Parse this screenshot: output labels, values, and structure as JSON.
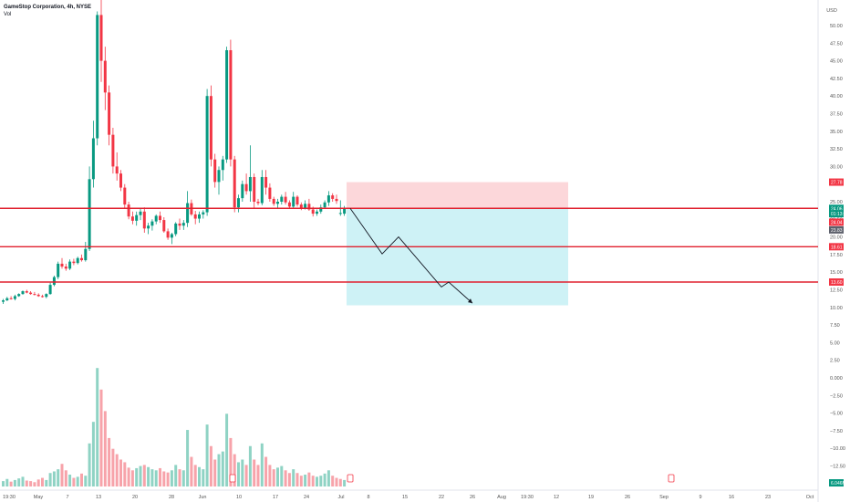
{
  "header": {
    "symbol_line": "GameStop Corporation, 4h, NYSE",
    "vol_label": "Vol",
    "currency": "USD"
  },
  "chart_data": {
    "type": "candlestick",
    "price_ticks": [
      "50.00",
      "47.50",
      "45.00",
      "42.50",
      "40.00",
      "37.50",
      "35.00",
      "32.50",
      "30.00",
      "27.50",
      "25.00",
      "22.50",
      "20.00",
      "17.50",
      "15.00",
      "12.50",
      "10.00",
      "7.50",
      "5.00",
      "2.50",
      "0.000",
      "−2.50",
      "−5.00",
      "−7.50",
      "−10.00",
      "−12.50"
    ],
    "price_tick_values": [
      50,
      47.5,
      45,
      42.5,
      40,
      37.5,
      35,
      32.5,
      30,
      27.5,
      25,
      22.5,
      20,
      17.5,
      15,
      12.5,
      10,
      7.5,
      5,
      2.5,
      0,
      -2.5,
      -5,
      -7.5,
      -10,
      -12.5
    ],
    "time_ticks": [
      "19:30",
      "May",
      "7",
      "13",
      "20",
      "28",
      "Jun",
      "10",
      "17",
      "24",
      "Jul",
      "8",
      "15",
      "22",
      "26",
      "Aug",
      "19:30",
      "12",
      "19",
      "26",
      "Sep",
      "9",
      "16",
      "23",
      "Oct"
    ],
    "horizontal_levels": [
      24.06,
      18.61,
      13.6
    ],
    "price_tags": [
      {
        "label": "27.78",
        "value": 27.78,
        "color": "#f23645"
      },
      {
        "label": "24.06",
        "value": 24.06,
        "color": "#089981"
      },
      {
        "label": "01:13:52",
        "value": 23.3,
        "color": "#089981"
      },
      {
        "label": "24.04",
        "value": 22.1,
        "color": "#f23645"
      },
      {
        "label": "23.83",
        "value": 21.0,
        "color": "#5d606b"
      },
      {
        "label": "18.61",
        "value": 18.61,
        "color": "#f23645"
      },
      {
        "label": "13.60",
        "value": 13.6,
        "color": "#f23645"
      },
      {
        "label": "6.046M",
        "value": -14.9,
        "color": "#089981"
      }
    ],
    "position": {
      "entry": 24.06,
      "stop": 27.78,
      "target": 10.3
    },
    "projection": [
      [
        24.06
      ],
      [
        17.6
      ],
      [
        20.0
      ],
      [
        12.9
      ],
      [
        13.6
      ],
      [
        10.6
      ]
    ],
    "candles": [
      [
        10.8,
        11.2,
        10.5,
        11.0
      ],
      [
        11.0,
        11.5,
        10.9,
        11.3
      ],
      [
        11.3,
        11.6,
        11.1,
        11.2
      ],
      [
        11.2,
        11.8,
        11.0,
        11.6
      ],
      [
        11.6,
        12.0,
        11.5,
        11.9
      ],
      [
        11.9,
        12.4,
        11.8,
        12.3
      ],
      [
        12.3,
        12.5,
        12.0,
        12.1
      ],
      [
        12.1,
        12.3,
        11.8,
        11.9
      ],
      [
        11.9,
        12.2,
        11.7,
        11.8
      ],
      [
        11.8,
        12.0,
        11.5,
        11.6
      ],
      [
        11.6,
        11.8,
        11.4,
        11.5
      ],
      [
        11.5,
        12.0,
        11.3,
        11.9
      ],
      [
        11.9,
        13.5,
        11.8,
        13.2
      ],
      [
        13.2,
        14.5,
        13.0,
        14.3
      ],
      [
        14.3,
        16.5,
        14.0,
        16.2
      ],
      [
        16.2,
        17.0,
        15.5,
        15.8
      ],
      [
        15.8,
        16.2,
        15.2,
        15.5
      ],
      [
        15.5,
        16.8,
        15.3,
        16.5
      ],
      [
        16.5,
        16.9,
        16.0,
        16.3
      ],
      [
        16.3,
        17.2,
        16.1,
        17.0
      ],
      [
        17.0,
        17.5,
        16.5,
        16.7
      ],
      [
        16.7,
        19.3,
        16.5,
        18.3
      ],
      [
        18.3,
        30.0,
        18.0,
        28.2
      ],
      [
        28.2,
        36.5,
        27.0,
        34.0
      ],
      [
        34.0,
        52.0,
        33.0,
        51.5
      ],
      [
        51.5,
        55.0,
        42.0,
        45.0
      ],
      [
        45.0,
        47.0,
        38.0,
        40.5
      ],
      [
        40.5,
        41.5,
        33.0,
        34.5
      ],
      [
        34.5,
        35.5,
        29.0,
        30.0
      ],
      [
        30.0,
        32.0,
        28.0,
        29.0
      ],
      [
        29.0,
        29.5,
        26.5,
        27.0
      ],
      [
        27.0,
        27.5,
        24.0,
        24.6
      ],
      [
        24.6,
        25.0,
        22.5,
        22.9
      ],
      [
        22.9,
        23.6,
        21.8,
        22.3
      ],
      [
        22.3,
        23.6,
        21.6,
        23.1
      ],
      [
        23.1,
        24.1,
        22.4,
        23.6
      ],
      [
        23.6,
        24.2,
        20.6,
        21.2
      ],
      [
        21.2,
        22.0,
        20.4,
        21.6
      ],
      [
        21.6,
        22.5,
        20.9,
        22.2
      ],
      [
        22.2,
        23.2,
        21.8,
        23.0
      ],
      [
        23.0,
        23.6,
        22.0,
        22.4
      ],
      [
        22.4,
        22.8,
        20.6,
        20.8
      ],
      [
        20.8,
        21.2,
        19.6,
        19.9
      ],
      [
        19.9,
        20.6,
        19.0,
        20.4
      ],
      [
        20.4,
        22.1,
        20.1,
        21.9
      ],
      [
        21.9,
        22.6,
        21.0,
        21.6
      ],
      [
        21.6,
        22.4,
        21.0,
        22.0
      ],
      [
        22.0,
        26.5,
        21.4,
        24.8
      ],
      [
        24.8,
        25.3,
        23.0,
        23.2
      ],
      [
        23.2,
        23.7,
        21.8,
        22.6
      ],
      [
        22.6,
        23.6,
        22.0,
        23.2
      ],
      [
        23.2,
        23.8,
        22.6,
        23.5
      ],
      [
        23.5,
        41.0,
        23.0,
        40.0
      ],
      [
        40.0,
        41.5,
        30.0,
        31.0
      ],
      [
        31.0,
        31.8,
        27.0,
        27.8
      ],
      [
        27.8,
        30.0,
        26.0,
        29.5
      ],
      [
        29.5,
        31.5,
        28.0,
        31.0
      ],
      [
        31.0,
        47.0,
        30.5,
        46.5
      ],
      [
        46.5,
        48.0,
        30.0,
        31.0
      ],
      [
        31.0,
        31.5,
        23.5,
        24.2
      ],
      [
        24.2,
        26.0,
        23.5,
        25.5
      ],
      [
        25.5,
        28.0,
        25.0,
        27.5
      ],
      [
        27.5,
        29.0,
        26.0,
        26.5
      ],
      [
        26.5,
        33.0,
        25.0,
        28.5
      ],
      [
        28.5,
        29.0,
        24.0,
        25.0
      ],
      [
        25.0,
        25.4,
        24.5,
        24.8
      ],
      [
        24.8,
        29.5,
        24.5,
        28.5
      ],
      [
        28.5,
        29.5,
        26.0,
        27.0
      ],
      [
        27.0,
        27.6,
        25.0,
        25.4
      ],
      [
        25.4,
        25.7,
        24.4,
        24.7
      ],
      [
        24.7,
        25.4,
        24.0,
        25.0
      ],
      [
        25.0,
        26.0,
        24.6,
        25.7
      ],
      [
        25.7,
        26.4,
        24.6,
        24.9
      ],
      [
        24.9,
        25.2,
        24.0,
        24.3
      ],
      [
        24.3,
        26.4,
        24.0,
        25.7
      ],
      [
        25.7,
        25.9,
        24.3,
        24.6
      ],
      [
        24.6,
        24.9,
        23.8,
        24.1
      ],
      [
        24.1,
        25.2,
        23.9,
        24.7
      ],
      [
        24.7,
        25.4,
        23.7,
        23.9
      ],
      [
        23.9,
        24.3,
        22.9,
        23.3
      ],
      [
        23.3,
        23.9,
        23.0,
        23.6
      ],
      [
        23.6,
        24.6,
        23.3,
        24.2
      ],
      [
        24.2,
        25.2,
        24.0,
        24.9
      ],
      [
        24.9,
        26.5,
        24.4,
        25.9
      ],
      [
        25.9,
        26.2,
        25.0,
        25.4
      ],
      [
        25.4,
        26.0,
        24.7,
        25.1
      ],
      [
        23.3,
        25.2,
        23.0,
        23.4
      ],
      [
        23.3,
        24.4,
        23.0,
        24.06
      ]
    ],
    "volumes": [
      1.0,
      1.4,
      0.9,
      1.2,
      1.5,
      1.8,
      1.1,
      1.0,
      0.8,
      1.3,
      1.6,
      1.2,
      2.5,
      2.8,
      3.2,
      4.2,
      3.0,
      2.2,
      1.6,
      1.8,
      2.4,
      2.0,
      8.0,
      12.0,
      22.0,
      18.0,
      14.0,
      9.0,
      7.0,
      6.0,
      5.0,
      4.5,
      3.5,
      3.0,
      3.4,
      3.8,
      4.0,
      3.6,
      3.2,
      3.0,
      3.4,
      2.8,
      2.6,
      3.0,
      4.0,
      3.2,
      3.0,
      10.5,
      5.5,
      4.0,
      3.6,
      3.2,
      11.5,
      7.5,
      5.0,
      6.0,
      6.5,
      13.5,
      9.0,
      6.0,
      4.5,
      5.0,
      4.0,
      7.5,
      5.0,
      4.0,
      8.0,
      5.5,
      4.0,
      3.2,
      3.5,
      3.8,
      3.0,
      2.5,
      3.2,
      2.5,
      2.0,
      2.2,
      2.6,
      2.0,
      1.8,
      2.0,
      2.4,
      3.0,
      2.0,
      1.6,
      1.4,
      1.2
    ],
    "volume_direction": [
      1,
      1,
      0,
      1,
      1,
      1,
      0,
      0,
      0,
      0,
      0,
      1,
      1,
      1,
      1,
      0,
      0,
      1,
      0,
      1,
      0,
      1,
      1,
      1,
      1,
      0,
      0,
      0,
      0,
      0,
      0,
      0,
      0,
      0,
      1,
      1,
      0,
      1,
      1,
      1,
      0,
      0,
      0,
      1,
      1,
      0,
      1,
      1,
      0,
      0,
      1,
      1,
      1,
      0,
      0,
      1,
      1,
      1,
      0,
      0,
      1,
      1,
      0,
      1,
      0,
      0,
      1,
      0,
      0,
      0,
      1,
      1,
      0,
      0,
      1,
      0,
      0,
      1,
      0,
      0,
      1,
      1,
      1,
      1,
      0,
      0,
      0,
      1
    ]
  }
}
